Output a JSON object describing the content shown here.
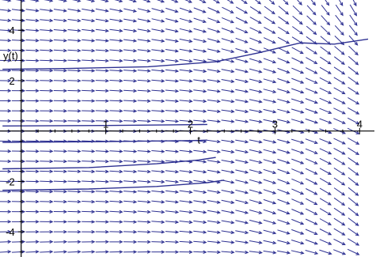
{
  "chart_data": {
    "type": "slope-field",
    "title": "",
    "xlabel": "t",
    "ylabel": "y(t)",
    "xlim": [
      -0.25,
      4.1
    ],
    "ylim": [
      -5.0,
      5.2
    ],
    "x_ticks": [
      {
        "value": 1,
        "label": "1"
      },
      {
        "value": 2,
        "label": "2"
      },
      {
        "value": 3,
        "label": "3"
      },
      {
        "value": 4,
        "label": "4"
      }
    ],
    "y_ticks": [
      {
        "value": 4,
        "label": "4"
      },
      {
        "value": 2,
        "label": "2"
      },
      {
        "value": -2,
        "label": "-2"
      },
      {
        "value": -4,
        "label": "-4"
      }
    ],
    "grid": false,
    "field_grid": {
      "t_start": -0.2,
      "t_step": 0.165,
      "t_count": 26,
      "y_start": -4.8,
      "y_step": 0.4,
      "y_count": 26
    },
    "solution_curves": [
      {
        "name": "",
        "points": [
          [
            -0.22,
            2.45
          ],
          [
            0.5,
            2.48
          ],
          [
            1.5,
            2.55
          ],
          [
            2.3,
            2.75
          ],
          [
            2.8,
            3.1
          ],
          [
            3.3,
            3.5
          ],
          [
            3.7,
            3.45
          ],
          [
            4.1,
            3.65
          ]
        ]
      },
      {
        "name": "",
        "points": [
          [
            -0.22,
            0.2
          ],
          [
            1.0,
            0.22
          ],
          [
            2.0,
            0.25
          ],
          [
            2.2,
            0.26
          ]
        ]
      },
      {
        "name": "",
        "points": [
          [
            -0.22,
            -0.45
          ],
          [
            1.0,
            -0.42
          ],
          [
            2.0,
            -0.38
          ],
          [
            2.2,
            -0.36
          ]
        ]
      },
      {
        "name": "",
        "points": [
          [
            -0.22,
            -1.5
          ],
          [
            0.8,
            -1.45
          ],
          [
            1.6,
            -1.3
          ],
          [
            2.1,
            -1.15
          ],
          [
            2.3,
            -1.05
          ]
        ]
      },
      {
        "name": "",
        "points": [
          [
            -0.22,
            -2.35
          ],
          [
            0.8,
            -2.3
          ],
          [
            1.6,
            -2.2
          ],
          [
            2.2,
            -2.05
          ],
          [
            2.4,
            -1.95
          ]
        ]
      }
    ],
    "colors": {
      "arrow": "#2e3192",
      "curve": "#2e3192",
      "axis": "#000000",
      "background": "#ffffff"
    }
  }
}
